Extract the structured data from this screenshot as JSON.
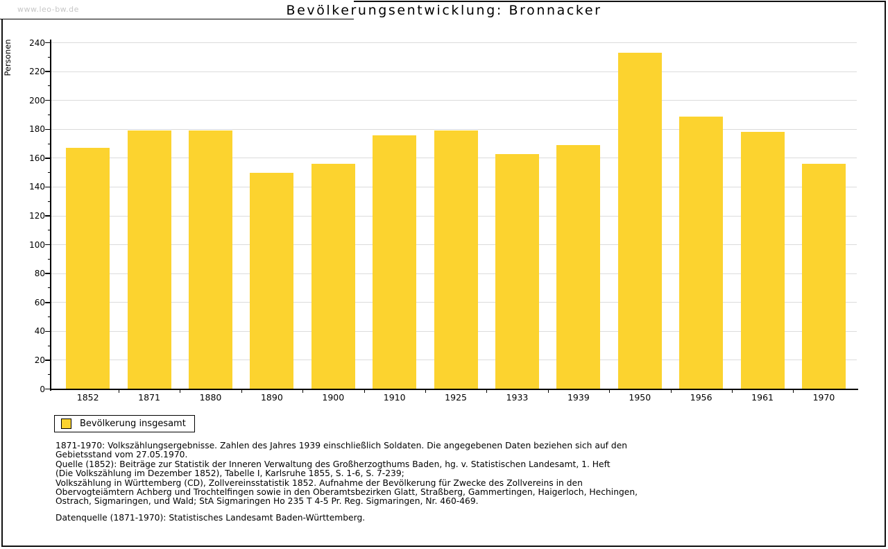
{
  "watermark": "www.leo-bw.de",
  "chart_data": {
    "type": "bar",
    "title": "Bevölkerungsentwicklung: Bronnacker",
    "ylabel": "Personen",
    "xlabel": "",
    "series_label": "Bevölkerung insgesamt",
    "categories": [
      "1852",
      "1871",
      "1880",
      "1890",
      "1900",
      "1910",
      "1925",
      "1933",
      "1939",
      "1950",
      "1956",
      "1961",
      "1970"
    ],
    "values": [
      167,
      179,
      179,
      150,
      156,
      176,
      179,
      163,
      169,
      233,
      189,
      178,
      156
    ],
    "ylim": [
      0,
      240
    ],
    "yticks": [
      0,
      20,
      40,
      60,
      80,
      100,
      120,
      140,
      160,
      180,
      200,
      220,
      240
    ],
    "grid": true,
    "legend_position": "bottom-left",
    "bar_color": "#FCD32F",
    "gridline_color": "#DBDBDB",
    "axis_color": "#000000"
  },
  "footer": {
    "lines": [
      "1871-1970: Volkszählungsergebnisse. Zahlen des Jahres 1939 einschließlich Soldaten. Die angegebenen Daten beziehen sich auf den",
      "Gebietsstand vom 27.05.1970.",
      "Quelle (1852): Beiträge zur Statistik der Inneren Verwaltung des Großherzogthums Baden, hg. v. Statistischen Landesamt, 1. Heft",
      "(Die Volkszählung im Dezember 1852), Tabelle I, Karlsruhe 1855, S. 1-6, S. 7-239;",
      "Volkszählung in Württemberg (CD), Zollvereinsstatistik 1852. Aufnahme der Bevölkerung für Zwecke des Zollvereins in den",
      "Obervogteiämtern Achberg und Trochtelfingen sowie in den Oberamtsbezirken Glatt, Straßberg, Gammertingen, Haigerloch, Hechingen,",
      "Ostrach, Sigmaringen, und Wald; StA Sigmaringen Ho 235 T 4-5 Pr. Reg. Sigmaringen, Nr. 460-469.",
      "Datenquelle (1871-1970): Statistisches Landesamt Baden-Württemberg."
    ]
  }
}
